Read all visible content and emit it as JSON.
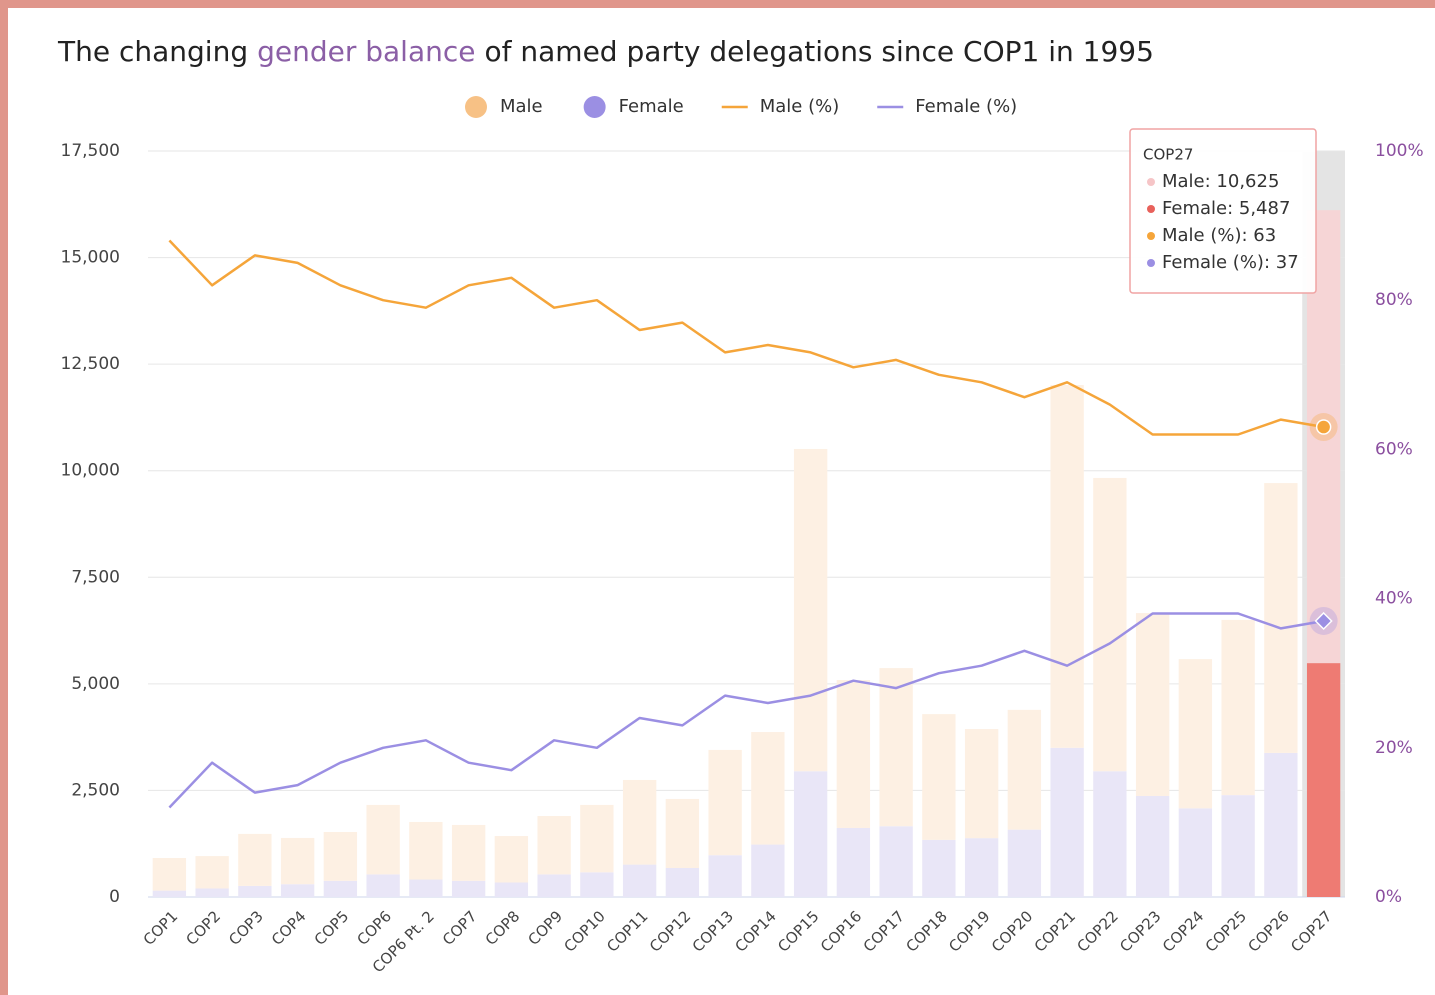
{
  "chart_data": {
    "type": "bar",
    "title": [
      "The changing",
      "gender balance",
      "of named party delegations since COP1 in 1995"
    ],
    "categories": [
      "COP1",
      "COP2",
      "COP3",
      "COP4",
      "COP5",
      "COP6",
      "COP6 Pt. 2",
      "COP7",
      "COP8",
      "COP9",
      "COP10",
      "COP11",
      "COP12",
      "COP13",
      "COP14",
      "COP15",
      "COP16",
      "COP17",
      "COP18",
      "COP19",
      "COP20",
      "COP21",
      "COP22",
      "COP23",
      "COP24",
      "COP25",
      "COP26",
      "COP27"
    ],
    "series": [
      {
        "name": "Female",
        "type": "bar",
        "color": "#e9e6f7",
        "highlight_color": "#ee7b73",
        "legend_color": "#9b8fe3",
        "values": [
          150,
          200,
          260,
          300,
          380,
          530,
          410,
          380,
          340,
          530,
          580,
          760,
          680,
          980,
          1230,
          2950,
          1620,
          1660,
          1340,
          1380,
          1580,
          3500,
          2950,
          2370,
          2080,
          2390,
          3380,
          5487
        ]
      },
      {
        "name": "Male",
        "type": "bar",
        "color": "#fdf0e3",
        "highlight_color": "#f6d5d6",
        "legend_color": "#f7c185",
        "values": [
          765,
          760,
          1220,
          1085,
          1145,
          1630,
          1350,
          1310,
          1090,
          1370,
          1580,
          1985,
          1620,
          2470,
          2640,
          7560,
          3470,
          3710,
          2950,
          2560,
          2810,
          8510,
          6880,
          4290,
          3500,
          4110,
          6330,
          10625
        ]
      },
      {
        "name": "Male (%)",
        "type": "line",
        "axis": "y2",
        "color": "#f5a53a",
        "values": [
          88,
          82,
          86,
          85,
          82,
          80,
          79,
          82,
          83,
          79,
          80,
          76,
          77,
          73,
          74,
          73,
          71,
          72,
          70,
          69,
          67,
          69,
          66,
          62,
          62,
          62,
          64,
          63
        ]
      },
      {
        "name": "Female (%)",
        "type": "line",
        "axis": "y2",
        "color": "#9b8fe3",
        "values": [
          12,
          18,
          14,
          15,
          18,
          20,
          21,
          18,
          17,
          21,
          20,
          24,
          23,
          27,
          26,
          27,
          29,
          28,
          30,
          31,
          33,
          31,
          34,
          38,
          38,
          38,
          36,
          37
        ]
      }
    ],
    "legend_order": [
      1,
      0,
      2,
      3
    ],
    "ylim": [
      0,
      17500
    ],
    "yticks": [
      0,
      {
        "value": 2500,
        "label": "2,500"
      },
      {
        "value": 5000,
        "label": "5,000"
      },
      {
        "value": 7500,
        "label": "7,500"
      },
      {
        "value": 10000,
        "label": "10,000"
      },
      {
        "value": 12500,
        "label": "12,500"
      },
      {
        "value": 15000,
        "label": "15,000"
      },
      {
        "value": 17500,
        "label": "17,500"
      }
    ],
    "y2lim": [
      0,
      100
    ],
    "y2ticks": [
      {
        "value": 0,
        "label": "0%"
      },
      {
        "value": 20,
        "label": "20%"
      },
      {
        "value": 40,
        "label": "40%"
      },
      {
        "value": 60,
        "label": "60%"
      },
      {
        "value": 80,
        "label": "80%"
      },
      {
        "value": 100,
        "label": "100%"
      }
    ],
    "grid": true,
    "stacked": true,
    "tooltip": {
      "title": "COP27",
      "items": [
        "Male: 10,625",
        "Female: 5,487",
        "Male (%): 63",
        "Female (%): 37"
      ],
      "colors": [
        "#f6c5c7",
        "#e8615b",
        "#f5a53a",
        "#9b8fe3"
      ]
    }
  }
}
